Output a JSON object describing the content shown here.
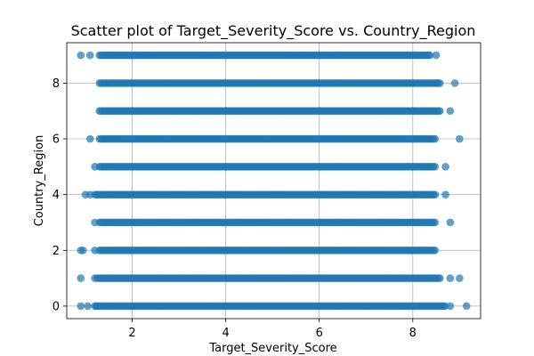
{
  "chart_data": {
    "type": "scatter",
    "title": "Scatter plot of Target_Severity_Score vs. Country_Region",
    "xlabel": "Target_Severity_Score",
    "ylabel": "Country_Region",
    "xlim": [
      0.6,
      9.45
    ],
    "ylim": [
      -0.45,
      9.45
    ],
    "xticks": [
      2,
      4,
      6,
      8
    ],
    "yticks": [
      0,
      2,
      4,
      6,
      8
    ],
    "grid": true,
    "marker_color": "#1f77b4",
    "marker_alpha": 0.7,
    "rows": [
      {
        "y": 0,
        "x_min": 1.2,
        "x_max": 8.7,
        "outliers": [
          0.9,
          1.05,
          1.25,
          8.8,
          9.15
        ]
      },
      {
        "y": 1,
        "x_min": 1.3,
        "x_max": 8.6,
        "outliers": [
          0.9,
          1.2,
          1.25,
          8.8,
          9.0
        ]
      },
      {
        "y": 2,
        "x_min": 1.3,
        "x_max": 8.5,
        "outliers": [
          0.9,
          0.95,
          1.2
        ]
      },
      {
        "y": 3,
        "x_min": 1.3,
        "x_max": 8.5,
        "outliers": [
          1.2,
          8.8
        ]
      },
      {
        "y": 4,
        "x_min": 1.2,
        "x_max": 8.5,
        "outliers": [
          1.0,
          1.1,
          8.7
        ]
      },
      {
        "y": 5,
        "x_min": 1.3,
        "x_max": 8.5,
        "outliers": [
          1.2,
          8.7
        ]
      },
      {
        "y": 6,
        "x_min": 1.3,
        "x_max": 8.5,
        "outliers": [
          1.1,
          9.0
        ]
      },
      {
        "y": 7,
        "x_min": 1.3,
        "x_max": 8.6,
        "outliers": [
          8.8
        ]
      },
      {
        "y": 8,
        "x_min": 1.3,
        "x_max": 8.6,
        "outliers": [
          8.9
        ]
      },
      {
        "y": 9,
        "x_min": 1.3,
        "x_max": 8.4,
        "outliers": [
          0.9,
          1.1,
          8.5
        ]
      }
    ]
  }
}
